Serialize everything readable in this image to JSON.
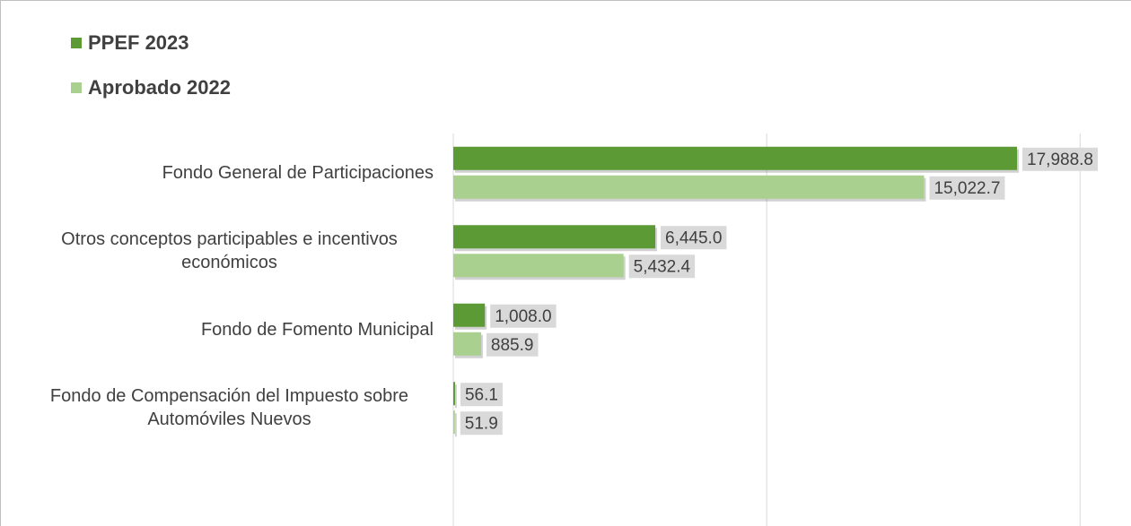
{
  "chart_data": {
    "type": "hbar",
    "categories": [
      "Fondo General de Participaciones",
      "Otros conceptos participables e incentivos económicos",
      "Fondo de Fomento Municipal",
      "Fondo de Compensación del Impuesto sobre Automóviles Nuevos"
    ],
    "series": [
      {
        "name": "PPEF 2023",
        "color": "#5b9a34",
        "values": [
          17988.8,
          6445.0,
          1008.0,
          56.1
        ],
        "value_labels": [
          "17,988.8",
          "6,445.0",
          "1,008.0",
          "56.1"
        ]
      },
      {
        "name": "Aprobado 2022",
        "color": "#a9d08e",
        "values": [
          15022.7,
          5432.4,
          885.9,
          51.9
        ],
        "value_labels": [
          "15,022.7",
          "5,432.4",
          "885.9",
          "51.9"
        ]
      }
    ],
    "xlim": [
      0,
      21630
    ],
    "xticks": [
      0,
      10000,
      20000
    ],
    "grid": true,
    "legend": "top-left"
  }
}
